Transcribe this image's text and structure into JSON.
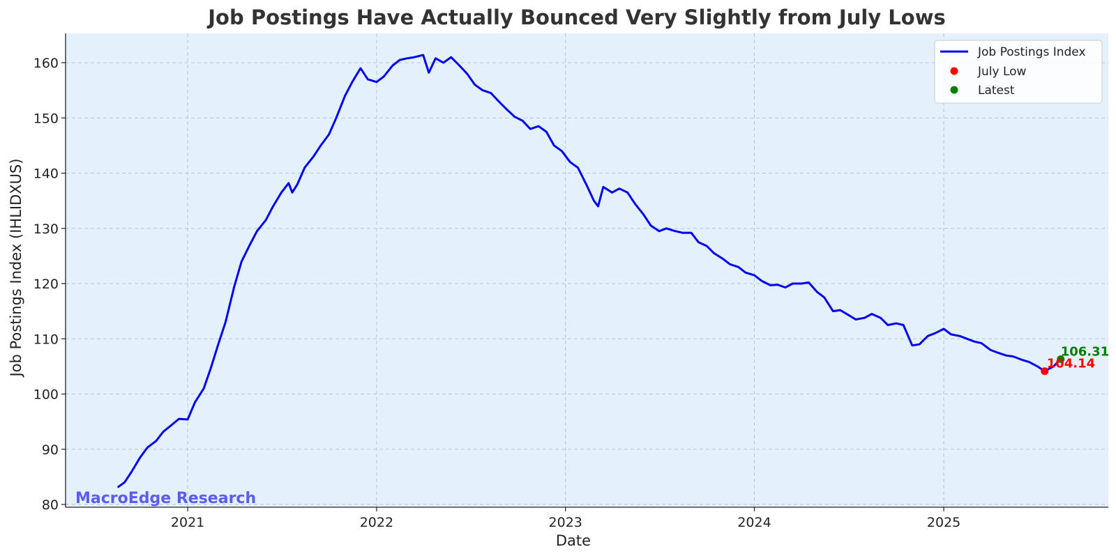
{
  "chart_data": {
    "type": "line",
    "title": "Job Postings Have Actually Bounced Very Slightly from July Lows",
    "xlabel": "Date",
    "ylabel": "Job Postings Index (IHLIDXUS)",
    "xlim": [
      "2020-05-10",
      "2025-11-15"
    ],
    "ylim": [
      79.5,
      165.3
    ],
    "x_ticks": [
      "2021",
      "2022",
      "2023",
      "2024",
      "2025"
    ],
    "y_ticks": [
      80,
      90,
      100,
      110,
      120,
      130,
      140,
      150,
      160
    ],
    "grid": true,
    "legend_position": "top-right",
    "background_color": "#e4f0fc",
    "series": [
      {
        "name": "Job Postings Index",
        "color": "#0000ee",
        "points": [
          [
            "2020-08-20",
            83.2
          ],
          [
            "2020-09-01",
            84.0
          ],
          [
            "2020-09-15",
            86.0
          ],
          [
            "2020-10-01",
            88.5
          ],
          [
            "2020-10-15",
            90.3
          ],
          [
            "2020-11-01",
            91.5
          ],
          [
            "2020-11-15",
            93.2
          ],
          [
            "2020-12-01",
            94.4
          ],
          [
            "2020-12-15",
            95.5
          ],
          [
            "2021-01-01",
            95.4
          ],
          [
            "2021-01-15",
            98.5
          ],
          [
            "2021-02-01",
            101.0
          ],
          [
            "2021-02-15",
            104.8
          ],
          [
            "2021-03-01",
            109.0
          ],
          [
            "2021-03-15",
            113.0
          ],
          [
            "2021-04-01",
            119.5
          ],
          [
            "2021-04-15",
            124.0
          ],
          [
            "2021-05-01",
            127.0
          ],
          [
            "2021-05-15",
            129.5
          ],
          [
            "2021-06-01",
            131.5
          ],
          [
            "2021-06-15",
            134.0
          ],
          [
            "2021-07-01",
            136.5
          ],
          [
            "2021-07-15",
            138.2
          ],
          [
            "2021-07-22",
            136.5
          ],
          [
            "2021-08-01",
            138.0
          ],
          [
            "2021-08-15",
            141.0
          ],
          [
            "2021-09-01",
            143.0
          ],
          [
            "2021-09-15",
            145.0
          ],
          [
            "2021-10-01",
            147.0
          ],
          [
            "2021-10-15",
            150.0
          ],
          [
            "2021-11-01",
            154.0
          ],
          [
            "2021-11-15",
            156.5
          ],
          [
            "2021-12-01",
            159.0
          ],
          [
            "2021-12-15",
            157.0
          ],
          [
            "2022-01-01",
            156.5
          ],
          [
            "2022-01-15",
            157.5
          ],
          [
            "2022-02-01",
            159.5
          ],
          [
            "2022-02-15",
            160.5
          ],
          [
            "2022-03-01",
            160.8
          ],
          [
            "2022-03-15",
            161.0
          ],
          [
            "2022-04-01",
            161.4
          ],
          [
            "2022-04-12",
            158.2
          ],
          [
            "2022-04-25",
            160.8
          ],
          [
            "2022-05-10",
            160.0
          ],
          [
            "2022-05-25",
            161.0
          ],
          [
            "2022-06-10",
            159.5
          ],
          [
            "2022-06-25",
            158.0
          ],
          [
            "2022-07-10",
            156.0
          ],
          [
            "2022-07-25",
            155.0
          ],
          [
            "2022-08-10",
            154.5
          ],
          [
            "2022-08-25",
            153.0
          ],
          [
            "2022-09-10",
            151.5
          ],
          [
            "2022-09-25",
            150.2
          ],
          [
            "2022-10-10",
            149.5
          ],
          [
            "2022-10-25",
            148.0
          ],
          [
            "2022-11-10",
            148.5
          ],
          [
            "2022-11-25",
            147.5
          ],
          [
            "2022-12-10",
            145.0
          ],
          [
            "2022-12-25",
            144.0
          ],
          [
            "2023-01-10",
            142.0
          ],
          [
            "2023-01-25",
            141.0
          ],
          [
            "2023-02-10",
            138.0
          ],
          [
            "2023-02-25",
            135.0
          ],
          [
            "2023-03-05",
            134.0
          ],
          [
            "2023-03-15",
            137.5
          ],
          [
            "2023-04-01",
            136.5
          ],
          [
            "2023-04-15",
            137.2
          ],
          [
            "2023-05-01",
            136.5
          ],
          [
            "2023-05-15",
            134.5
          ],
          [
            "2023-06-01",
            132.5
          ],
          [
            "2023-06-15",
            130.5
          ],
          [
            "2023-07-01",
            129.5
          ],
          [
            "2023-07-15",
            130.0
          ],
          [
            "2023-08-01",
            129.5
          ],
          [
            "2023-08-15",
            129.2
          ],
          [
            "2023-09-01",
            129.2
          ],
          [
            "2023-09-15",
            127.5
          ],
          [
            "2023-10-01",
            126.8
          ],
          [
            "2023-10-15",
            125.5
          ],
          [
            "2023-11-01",
            124.5
          ],
          [
            "2023-11-15",
            123.5
          ],
          [
            "2023-12-01",
            123.0
          ],
          [
            "2023-12-15",
            122.0
          ],
          [
            "2024-01-01",
            121.5
          ],
          [
            "2024-01-15",
            120.5
          ],
          [
            "2024-02-01",
            119.7
          ],
          [
            "2024-02-15",
            119.8
          ],
          [
            "2024-03-01",
            119.3
          ],
          [
            "2024-03-15",
            120.0
          ],
          [
            "2024-04-01",
            120.0
          ],
          [
            "2024-04-15",
            120.2
          ],
          [
            "2024-05-01",
            118.5
          ],
          [
            "2024-05-15",
            117.5
          ],
          [
            "2024-06-01",
            115.0
          ],
          [
            "2024-06-15",
            115.2
          ],
          [
            "2024-07-01",
            114.3
          ],
          [
            "2024-07-15",
            113.5
          ],
          [
            "2024-08-01",
            113.8
          ],
          [
            "2024-08-15",
            114.5
          ],
          [
            "2024-09-01",
            113.8
          ],
          [
            "2024-09-15",
            112.5
          ],
          [
            "2024-10-01",
            112.8
          ],
          [
            "2024-10-15",
            112.5
          ],
          [
            "2024-11-01",
            108.8
          ],
          [
            "2024-11-15",
            109.0
          ],
          [
            "2024-12-01",
            110.5
          ],
          [
            "2024-12-15",
            111.0
          ],
          [
            "2025-01-01",
            111.8
          ],
          [
            "2025-01-15",
            110.8
          ],
          [
            "2025-02-01",
            110.5
          ],
          [
            "2025-02-15",
            110.0
          ],
          [
            "2025-03-01",
            109.5
          ],
          [
            "2025-03-15",
            109.2
          ],
          [
            "2025-04-01",
            108.0
          ],
          [
            "2025-04-15",
            107.5
          ],
          [
            "2025-05-01",
            107.0
          ],
          [
            "2025-05-15",
            106.8
          ],
          [
            "2025-06-01",
            106.2
          ],
          [
            "2025-06-15",
            105.8
          ],
          [
            "2025-07-01",
            105.0
          ],
          [
            "2025-07-15",
            104.14
          ],
          [
            "2025-08-01",
            105.0
          ],
          [
            "2025-08-15",
            106.31
          ]
        ]
      },
      {
        "name": "July Low",
        "color": "#ff0000",
        "points": [
          [
            "2025-07-15",
            104.14
          ]
        ],
        "label": "104.14"
      },
      {
        "name": "Latest",
        "color": "#008000",
        "points": [
          [
            "2025-08-15",
            106.31
          ]
        ],
        "label": "106.31"
      }
    ],
    "watermark": "MacroEdge Research"
  }
}
